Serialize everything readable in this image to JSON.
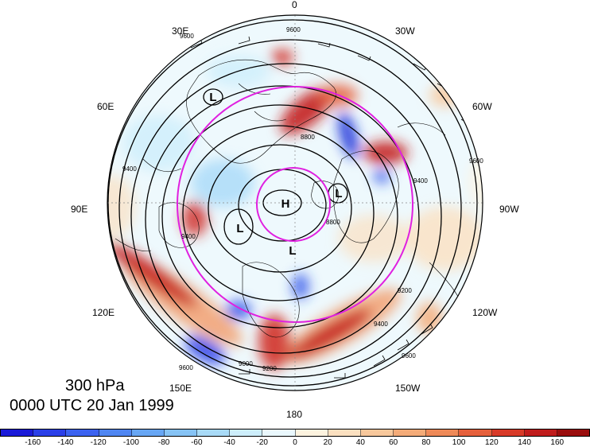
{
  "title": {
    "level": "300 hPa",
    "time": "0000 UTC 20 Jan 1999"
  },
  "longitude_labels": {
    "lon_0": "0",
    "lon_30w": "30W",
    "lon_60w": "60W",
    "lon_90w": "90W",
    "lon_120w": "120W",
    "lon_150w": "150W",
    "lon_180": "180",
    "lon_150e": "150E",
    "lon_120e": "120E",
    "lon_90e": "90E",
    "lon_60e": "60E",
    "lon_30e": "30E"
  },
  "pressure_centers": [
    {
      "label": "H"
    },
    {
      "label": "L"
    },
    {
      "label": "L"
    },
    {
      "label": "L"
    },
    {
      "label": "L"
    }
  ],
  "contour_labels": [
    "9600",
    "9600",
    "9400",
    "9400",
    "9200",
    "9200",
    "9000",
    "8800",
    "8800",
    "9400",
    "9600",
    "9600",
    "9600",
    "9400"
  ],
  "colorbar": {
    "ticks": [
      "-160",
      "-140",
      "-120",
      "-100",
      "-80",
      "-60",
      "-40",
      "-20",
      "0",
      "20",
      "40",
      "60",
      "80",
      "100",
      "120",
      "140",
      "160"
    ],
    "colors": [
      "#1a1ad8",
      "#2a3fe8",
      "#3b62f0",
      "#4f86f2",
      "#67a6f4",
      "#86c3f5",
      "#a8daf7",
      "#cdeefb",
      "#eaf8fd",
      "#fdf3df",
      "#fbe0c0",
      "#f8c89c",
      "#f4ab78",
      "#ef8a58",
      "#e6603c",
      "#d83a28",
      "#c01c1c",
      "#9a0d0d"
    ]
  },
  "colors": {
    "latitude_circle": "#e020e0",
    "contour": "#000000"
  }
}
